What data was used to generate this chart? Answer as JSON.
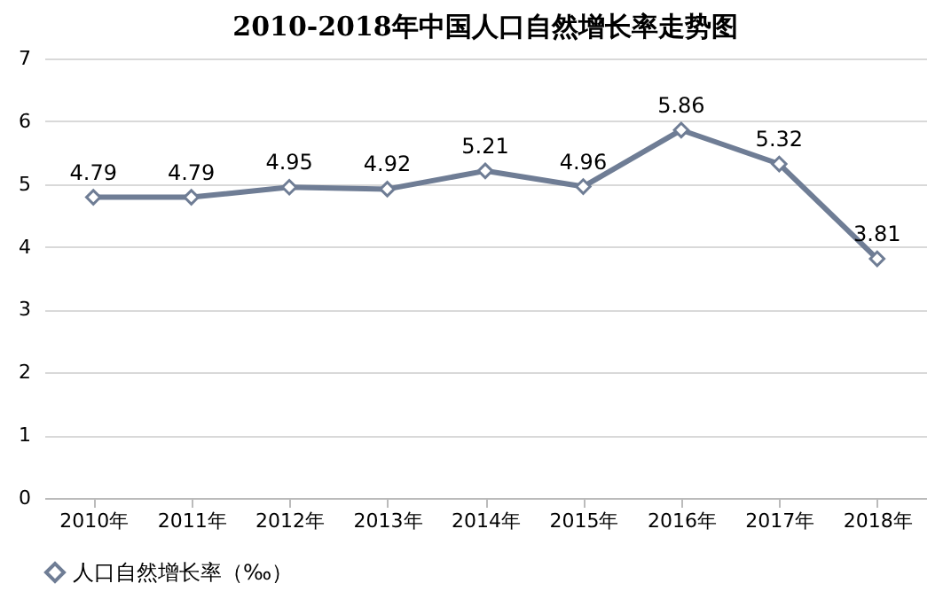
{
  "chart_data": {
    "type": "line",
    "title": "2010-2018年中国人口自然增长率走势图",
    "categories": [
      "2010年",
      "2011年",
      "2012年",
      "2013年",
      "2014年",
      "2015年",
      "2016年",
      "2017年",
      "2018年"
    ],
    "series": [
      {
        "name": "人口自然增长率（‰）",
        "color": "#6f7d95",
        "values": [
          4.79,
          4.79,
          4.95,
          4.92,
          5.21,
          4.96,
          5.86,
          5.32,
          3.81
        ]
      }
    ],
    "ylim": [
      0,
      7
    ],
    "yticks": [
      0,
      1,
      2,
      3,
      4,
      5,
      6,
      7
    ],
    "grid": "y",
    "legend": "bottom",
    "marker": "diamond",
    "line_style": "solid",
    "data_labels": true
  }
}
